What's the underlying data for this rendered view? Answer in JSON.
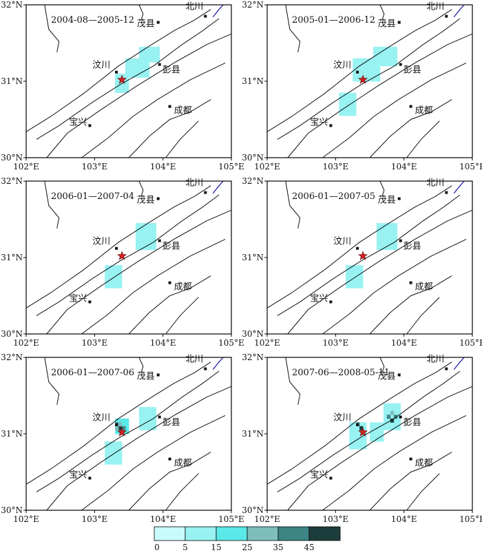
{
  "colors": {
    "fault": "#111111",
    "river": "#1a1aa8",
    "epicenter": "#d42020",
    "city": "#111111",
    "frame": "#000000"
  },
  "axes": {
    "x_labels": [
      "102°E",
      "103°E",
      "104°E",
      "105°E"
    ],
    "y_labels": [
      "30°N",
      "31°N",
      "32°N"
    ],
    "lon_range": [
      102,
      105
    ],
    "lat_range": [
      30,
      32
    ]
  },
  "cities": [
    {
      "name": "北川",
      "lon": 104.62,
      "lat": 31.85
    },
    {
      "name": "茂县",
      "lon": 103.93,
      "lat": 31.77
    },
    {
      "name": "汶川",
      "lon": 103.32,
      "lat": 31.12
    },
    {
      "name": "彭县",
      "lon": 103.95,
      "lat": 31.22
    },
    {
      "name": "成都",
      "lon": 104.1,
      "lat": 30.67
    },
    {
      "name": "宝兴",
      "lon": 102.93,
      "lat": 30.42
    }
  ],
  "epicenter": {
    "lon": 103.4,
    "lat": 31.02,
    "symbol": "star"
  },
  "panels": [
    {
      "period": "2004-08—2005-12"
    },
    {
      "period": "2005-01—2006-12"
    },
    {
      "period": "2006-01—2007-04"
    },
    {
      "period": "2006-01—2007-05"
    },
    {
      "period": "2006-01—2007-06"
    },
    {
      "period": "2007-06—2008-05-11"
    }
  ],
  "colorbar": {
    "ticks": [
      "0",
      "5",
      "15",
      "25",
      "35",
      "45"
    ],
    "colors": [
      "#c8fbfb",
      "#98f2f2",
      "#5be8e8",
      "#7fbdbd",
      "#3d8585",
      "#1d3c3c"
    ]
  }
}
